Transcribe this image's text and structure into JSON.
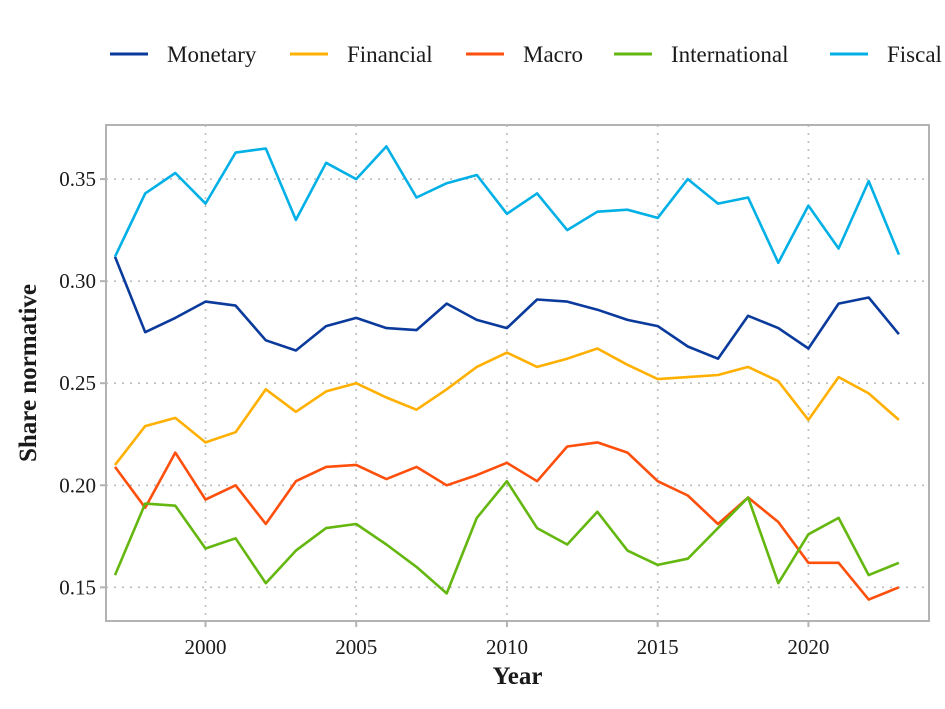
{
  "chart_data": {
    "type": "line",
    "title": "",
    "xlabel": "Year",
    "ylabel": "Share normative",
    "xlim": [
      1996.7,
      2024.0
    ],
    "ylim": [
      0.1335,
      0.3765
    ],
    "x_ticks": [
      2000,
      2005,
      2010,
      2015,
      2020
    ],
    "x_tick_labels": [
      "2000",
      "2005",
      "2010",
      "2015",
      "2020"
    ],
    "y_ticks": [
      0.15,
      0.2,
      0.25,
      0.3,
      0.35
    ],
    "y_tick_labels": [
      "0.15",
      "0.20",
      "0.25",
      "0.30",
      "0.35"
    ],
    "grid": true,
    "legend_position": "top",
    "x": [
      1997,
      1998,
      1999,
      2000,
      2001,
      2002,
      2003,
      2004,
      2005,
      2006,
      2007,
      2008,
      2009,
      2010,
      2011,
      2012,
      2013,
      2014,
      2015,
      2016,
      2017,
      2018,
      2019,
      2020,
      2021,
      2022,
      2023
    ],
    "series": [
      {
        "name": "Monetary",
        "color": "#0a3a9c",
        "values": [
          0.312,
          0.275,
          0.282,
          0.29,
          0.288,
          0.271,
          0.266,
          0.278,
          0.282,
          0.277,
          0.276,
          0.289,
          0.281,
          0.277,
          0.291,
          0.29,
          0.286,
          0.281,
          0.278,
          0.268,
          0.262,
          0.283,
          0.277,
          0.267,
          0.289,
          0.292,
          0.274
        ]
      },
      {
        "name": "Financial",
        "color": "#ffb000",
        "values": [
          0.21,
          0.229,
          0.233,
          0.221,
          0.226,
          0.247,
          0.236,
          0.246,
          0.25,
          0.243,
          0.237,
          0.247,
          0.258,
          0.265,
          0.258,
          0.262,
          0.267,
          0.259,
          0.252,
          0.253,
          0.254,
          0.258,
          0.251,
          0.232,
          0.253,
          0.245,
          0.232
        ]
      },
      {
        "name": "Macro",
        "color": "#fe4f0c",
        "values": [
          0.209,
          0.189,
          0.216,
          0.193,
          0.2,
          0.181,
          0.202,
          0.209,
          0.21,
          0.203,
          0.209,
          0.2,
          0.205,
          0.211,
          0.202,
          0.219,
          0.221,
          0.216,
          0.202,
          0.195,
          0.181,
          0.194,
          0.182,
          0.162,
          0.162,
          0.144,
          0.15
        ]
      },
      {
        "name": "International",
        "color": "#64b70f",
        "values": [
          0.156,
          0.191,
          0.19,
          0.169,
          0.174,
          0.152,
          0.168,
          0.179,
          0.181,
          0.171,
          0.16,
          0.147,
          0.184,
          0.202,
          0.179,
          0.171,
          0.187,
          0.168,
          0.161,
          0.164,
          0.179,
          0.194,
          0.152,
          0.176,
          0.184,
          0.156,
          0.162
        ]
      },
      {
        "name": "Fiscal",
        "color": "#00b0e6",
        "values": [
          0.312,
          0.343,
          0.353,
          0.338,
          0.363,
          0.365,
          0.33,
          0.358,
          0.35,
          0.366,
          0.341,
          0.348,
          0.352,
          0.333,
          0.343,
          0.325,
          0.334,
          0.335,
          0.331,
          0.35,
          0.338,
          0.341,
          0.309,
          0.337,
          0.316,
          0.349,
          0.313
        ]
      }
    ]
  }
}
